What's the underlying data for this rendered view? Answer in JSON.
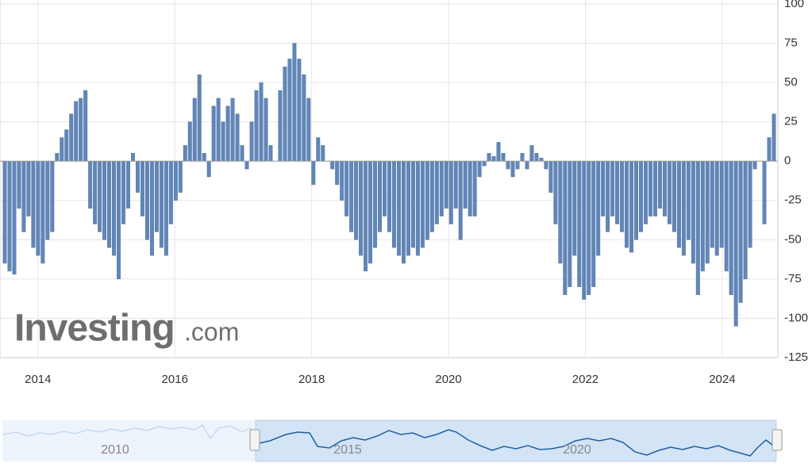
{
  "chart_data": {
    "type": "bar",
    "values": [
      -65,
      -70,
      -72,
      -30,
      -45,
      -35,
      -55,
      -60,
      -65,
      -50,
      -45,
      5,
      15,
      20,
      30,
      38,
      40,
      45,
      -30,
      -40,
      -45,
      -50,
      -55,
      -60,
      -75,
      -40,
      -30,
      5,
      -20,
      -35,
      -50,
      -60,
      -45,
      -55,
      -60,
      -40,
      -25,
      -20,
      10,
      25,
      40,
      55,
      5,
      -10,
      35,
      40,
      25,
      35,
      40,
      30,
      10,
      -5,
      25,
      45,
      50,
      40,
      10,
      0,
      45,
      60,
      65,
      75,
      65,
      55,
      40,
      -15,
      15,
      10,
      0,
      -5,
      -15,
      -25,
      -35,
      -45,
      -50,
      -60,
      -70,
      -65,
      -55,
      -45,
      -35,
      -45,
      -55,
      -60,
      -65,
      -60,
      -55,
      -60,
      -55,
      -50,
      -45,
      -40,
      -35,
      -30,
      -40,
      -30,
      -50,
      -30,
      -35,
      -35,
      -10,
      -3,
      5,
      3,
      12,
      5,
      -5,
      -10,
      -5,
      5,
      -5,
      10,
      5,
      2,
      -5,
      -20,
      -40,
      -65,
      -85,
      -80,
      -60,
      -80,
      -88,
      -85,
      -80,
      -60,
      -35,
      -45,
      -35,
      -40,
      -45,
      -55,
      -58,
      -50,
      -45,
      -40,
      -35,
      -35,
      -30,
      -35,
      -40,
      -45,
      -55,
      -60,
      -50,
      -65,
      -85,
      -70,
      -65,
      -55,
      -60,
      -55,
      -70,
      -85,
      -105,
      -90,
      -75,
      -55,
      -5,
      0,
      -40,
      15,
      30
    ],
    "color": "#6186b8",
    "ylim": [
      -125,
      100
    ],
    "yticks": [
      -125,
      -100,
      -75,
      -50,
      -25,
      0,
      25,
      50,
      75,
      100
    ],
    "xlim": [
      2013.48,
      2024.79
    ],
    "xticks": [
      2014,
      2016,
      2018,
      2020,
      2022,
      2024
    ],
    "grid": true
  },
  "navigator": {
    "labels": [
      "2010",
      "2015",
      "2020"
    ]
  },
  "logo": {
    "brand": "Investing",
    "suffix": ".com"
  }
}
